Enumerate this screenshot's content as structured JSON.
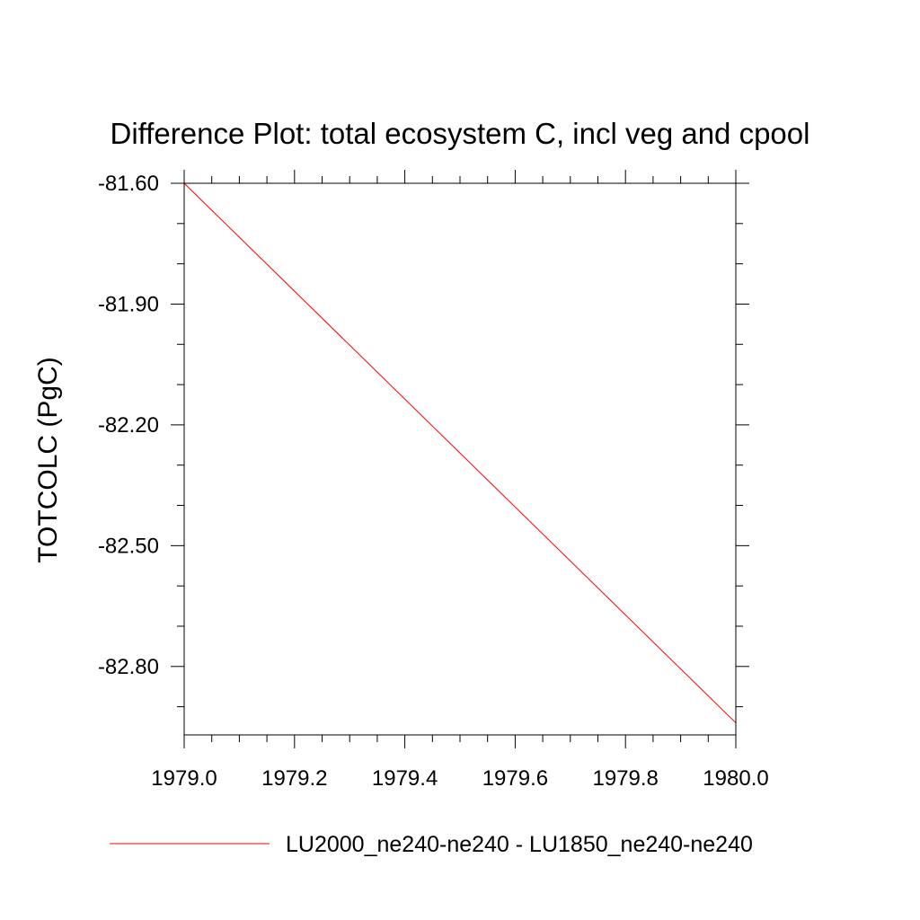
{
  "chart_data": {
    "type": "line",
    "title": "Difference Plot: total ecosystem C, incl veg and cpool",
    "xlabel": "",
    "ylabel": "TOTCOLC  (PgC)",
    "xlim": [
      1979.0,
      1980.0
    ],
    "ylim": [
      -82.97,
      -81.6
    ],
    "x_ticks": [
      "1979.0",
      "1979.2",
      "1979.4",
      "1979.6",
      "1979.8",
      "1980.0"
    ],
    "y_ticks": [
      "-81.60",
      "-81.90",
      "-82.20",
      "-82.50",
      "-82.80"
    ],
    "grid": false,
    "legend_position": "bottom",
    "series": [
      {
        "name": "LU2000_ne240-ne240 - LU1850_ne240-ne240",
        "color": "#ff0000",
        "x": [
          1979.0,
          1980.0
        ],
        "y": [
          -81.6,
          -82.94
        ]
      }
    ]
  }
}
